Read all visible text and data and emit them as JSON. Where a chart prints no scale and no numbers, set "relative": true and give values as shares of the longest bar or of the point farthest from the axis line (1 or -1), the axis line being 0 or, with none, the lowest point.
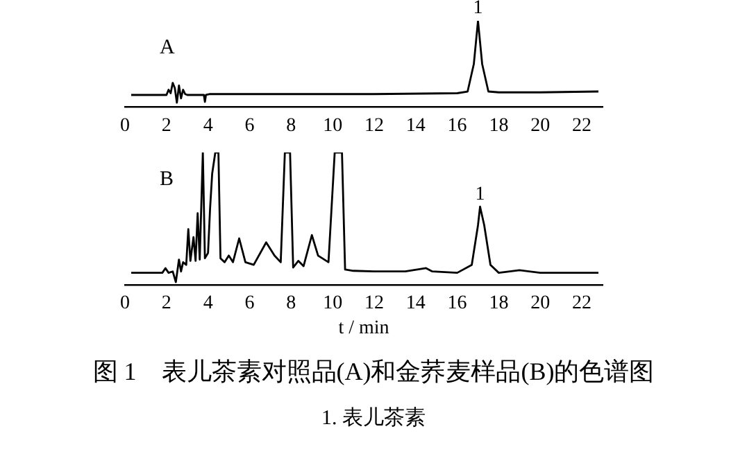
{
  "chart_data": [
    {
      "type": "line",
      "relative": true,
      "xlim": [
        0,
        23
      ],
      "xticks": [
        0,
        2,
        4,
        6,
        8,
        10,
        12,
        14,
        16,
        18,
        20,
        22
      ],
      "grid": false,
      "legend": false,
      "marker": "none",
      "tick_labels": "x",
      "annotations": [
        "A",
        {
          "text": "1",
          "x": 17.0,
          "y": 1
        }
      ],
      "series": [
        {
          "color": "#000000",
          "x": [
            0.3,
            2.0,
            2.1,
            2.2,
            2.3,
            2.4,
            2.5,
            2.6,
            2.7,
            2.8,
            2.9,
            3.0,
            3.8,
            3.85,
            3.9,
            4.1,
            8,
            12,
            16,
            16.5,
            16.8,
            17.0,
            17.2,
            17.5,
            18,
            20,
            22.8
          ],
          "values": [
            0.14,
            0.14,
            0.2,
            0.16,
            0.28,
            0.22,
            0.05,
            0.25,
            0.1,
            0.2,
            0.15,
            0.14,
            0.14,
            0.06,
            0.14,
            0.15,
            0.15,
            0.15,
            0.16,
            0.18,
            0.5,
            1,
            0.5,
            0.18,
            0.17,
            0.17,
            0.18
          ]
        }
      ]
    },
    {
      "type": "line",
      "relative": true,
      "xlim": [
        0,
        23
      ],
      "xticks": [
        0,
        2,
        4,
        6,
        8,
        10,
        12,
        14,
        16,
        18,
        20,
        22
      ],
      "grid": false,
      "legend": false,
      "marker": "none",
      "tick_labels": "x",
      "xlabel": "t / min",
      "title": "图 1　表儿茶素对照品(A)和金荞麦样品(B)的色谱图",
      "subtitle": "1. 表儿茶素",
      "annotations": [
        "B",
        {
          "text": "1",
          "x": 17.1,
          "y": 0.59
        }
      ],
      "series": [
        {
          "color": "#000000",
          "x": [
            0.3,
            1.8,
            1.95,
            2.1,
            2.3,
            2.45,
            2.6,
            2.7,
            2.8,
            2.95,
            3.05,
            3.15,
            3.3,
            3.4,
            3.5,
            3.6,
            3.75,
            3.85,
            4.0,
            4.1,
            4.2,
            4.35,
            4.5,
            4.6,
            4.8,
            5.0,
            5.2,
            5.5,
            5.8,
            6.2,
            6.8,
            7.2,
            7.5,
            7.7,
            7.8,
            7.95,
            8.1,
            8.35,
            8.6,
            9.0,
            9.3,
            9.8,
            10.1,
            10.45,
            10.6,
            11,
            12,
            13.5,
            14.5,
            14.8,
            16,
            16.7,
            17.0,
            17.1,
            17.3,
            17.6,
            18,
            19,
            20,
            22.8
          ],
          "values": [
            0.09,
            0.09,
            0.125,
            0.09,
            0.1,
            0.02,
            0.19,
            0.1,
            0.17,
            0.15,
            0.42,
            0.18,
            0.36,
            0.18,
            0.54,
            0.19,
            1,
            0.2,
            0.24,
            0.58,
            0.84,
            1,
            1,
            0.2,
            0.17,
            0.22,
            0.17,
            0.35,
            0.17,
            0.15,
            0.32,
            0.22,
            0.17,
            1,
            1,
            1,
            0.13,
            0.18,
            0.14,
            0.375,
            0.22,
            0.17,
            1,
            1,
            0.115,
            0.105,
            0.1,
            0.1,
            0.125,
            0.1,
            0.09,
            0.15,
            0.45,
            0.59,
            0.45,
            0.15,
            0.09,
            0.11,
            0.09,
            0.09
          ]
        }
      ]
    }
  ]
}
